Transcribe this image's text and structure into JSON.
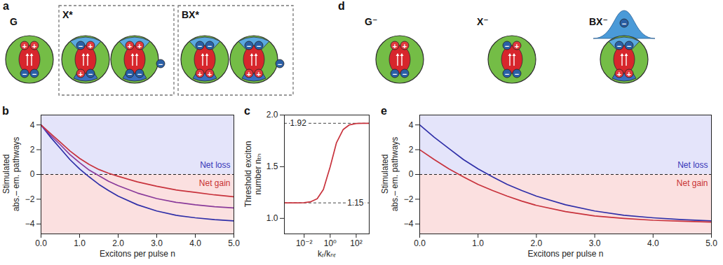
{
  "chart_data": [
    {
      "panel": "b",
      "type": "line",
      "x": [
        0,
        0.25,
        0.5,
        0.75,
        1,
        1.25,
        1.5,
        1.75,
        2,
        2.5,
        3,
        3.5,
        4,
        4.5,
        5
      ],
      "series": [
        {
          "color": "#2f2fa8",
          "values": [
            4,
            3.0,
            2.1,
            1.2,
            0.45,
            -0.2,
            -0.8,
            -1.3,
            -1.75,
            -2.45,
            -2.95,
            -3.3,
            -3.5,
            -3.65,
            -3.75
          ]
        },
        {
          "color": "#8a3a9a",
          "values": [
            4,
            3.15,
            2.4,
            1.6,
            0.95,
            0.35,
            -0.1,
            -0.55,
            -0.9,
            -1.5,
            -1.95,
            -2.25,
            -2.45,
            -2.6,
            -2.7
          ]
        },
        {
          "color": "#c8323c",
          "values": [
            4,
            3.3,
            2.6,
            1.9,
            1.3,
            0.8,
            0.4,
            0.1,
            -0.15,
            -0.6,
            -0.95,
            -1.25,
            -1.45,
            -1.65,
            -1.8
          ]
        }
      ],
      "xlim": [
        0,
        5
      ],
      "ylim": [
        -4.8,
        4.8
      ],
      "xticks": [
        0,
        1,
        2,
        3,
        4,
        5
      ],
      "yticks": [
        -4,
        -2,
        0,
        2,
        4
      ],
      "x_label": "Excitons per pulse n",
      "y_label": "Stimulated\nabs.– em. pathways",
      "hline": 0,
      "annotations": [
        {
          "text": "Net loss",
          "color": "#3535b8"
        },
        {
          "text": "Net gain",
          "color": "#c83232"
        }
      ]
    },
    {
      "panel": "c",
      "type": "line",
      "log": "x",
      "x": [
        0.0003,
        0.001,
        0.003,
        0.01,
        0.03,
        0.1,
        0.3,
        1,
        3,
        10,
        30,
        100,
        300,
        1000
      ],
      "series": [
        {
          "color": "#c8323c",
          "values": [
            1.15,
            1.15,
            1.15,
            1.152,
            1.16,
            1.19,
            1.28,
            1.5,
            1.73,
            1.86,
            1.905,
            1.918,
            1.92,
            1.92
          ]
        }
      ],
      "xlim": [
        0.0003,
        1000
      ],
      "ylim": [
        0.85,
        2.0
      ],
      "xticks": [
        {
          "value": 0.01,
          "label": "10⁻²"
        },
        {
          "value": 1,
          "label": "10⁰"
        },
        {
          "value": 100,
          "label": "10²"
        }
      ],
      "yticks": [
        {
          "value": 1,
          "label": "1.0"
        },
        1.5,
        {
          "value": 2,
          "label": "2.0"
        }
      ],
      "x_label": "kᵣ/kₙᵣ",
      "y_label": "Threshold exciton\nnumber nₜₕ",
      "hlines": [
        1.92,
        1.15
      ]
    },
    {
      "panel": "e",
      "type": "line",
      "x": [
        0,
        0.25,
        0.5,
        0.75,
        1,
        1.25,
        1.5,
        1.75,
        2,
        2.5,
        3,
        3.5,
        4,
        4.5,
        5
      ],
      "series": [
        {
          "color": "#2f2fa8",
          "values": [
            4,
            3.0,
            2.1,
            1.2,
            0.45,
            -0.2,
            -0.8,
            -1.3,
            -1.75,
            -2.45,
            -2.95,
            -3.3,
            -3.5,
            -3.65,
            -3.75
          ]
        },
        {
          "color": "#c8323c",
          "values": [
            2,
            1.2,
            0.45,
            -0.2,
            -0.8,
            -1.3,
            -1.75,
            -2.15,
            -2.5,
            -3.0,
            -3.35,
            -3.55,
            -3.7,
            -3.78,
            -3.85
          ]
        }
      ],
      "xlim": [
        0,
        5
      ],
      "ylim": [
        -4.8,
        4.8
      ],
      "xticks": [
        0,
        1,
        2,
        3,
        4,
        5
      ],
      "yticks": [
        -4,
        -2,
        0,
        2,
        4
      ],
      "x_label": "Excitons per pulse n",
      "y_label": "Stimulated\nabs.– em. pathways",
      "hline": 0,
      "annotations": [
        {
          "text": "Net loss",
          "color": "#3535b8"
        },
        {
          "text": "Net gain",
          "color": "#c83232"
        }
      ]
    }
  ],
  "diagrams": [
    {
      "panel": "a",
      "states": [
        {
          "label": "G"
        },
        {
          "label": "X*"
        },
        {
          "label": "BX*"
        }
      ]
    },
    {
      "panel": "d",
      "states": [
        {
          "label": "G⁻"
        },
        {
          "label": "X⁻"
        },
        {
          "label": "BX⁻"
        }
      ]
    }
  ],
  "charge_symbols": {
    "hole": "+",
    "electron": "−"
  }
}
